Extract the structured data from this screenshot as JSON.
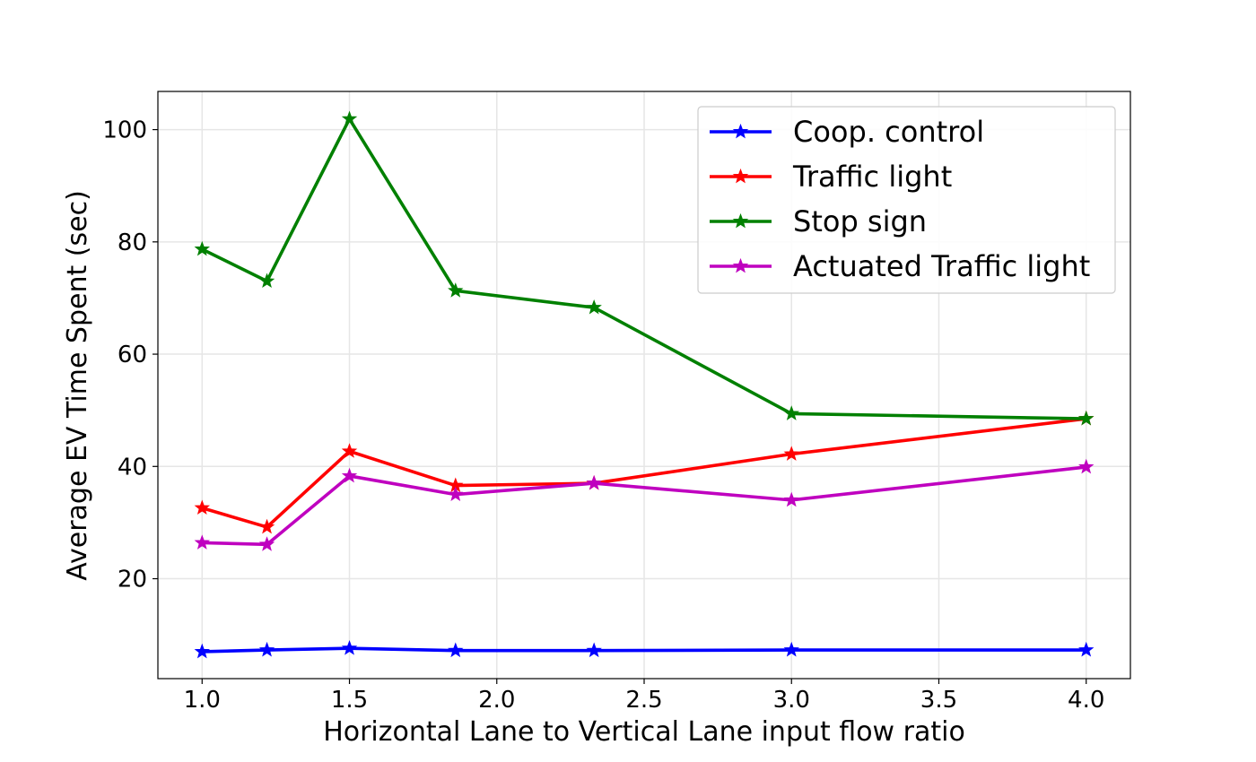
{
  "chart_data": {
    "type": "line",
    "title": "",
    "xlabel": "Horizontal Lane to Vertical Lane input flow ratio",
    "ylabel": "Average EV Time Spent (sec)",
    "xlim": [
      0.85,
      4.15
    ],
    "ylim": [
      2.2,
      106.8
    ],
    "xticks": [
      1.0,
      1.5,
      2.0,
      2.5,
      3.0,
      3.5,
      4.0
    ],
    "xtick_labels": [
      "1.0",
      "1.5",
      "2.0",
      "2.5",
      "3.0",
      "3.5",
      "4.0"
    ],
    "yticks": [
      20,
      40,
      60,
      80,
      100
    ],
    "ytick_labels": [
      "20",
      "40",
      "60",
      "80",
      "100"
    ],
    "grid": true,
    "legend_position": "top-right",
    "marker": "star",
    "x": [
      1.0,
      1.22,
      1.5,
      1.86,
      2.33,
      3.0,
      4.0
    ],
    "series": [
      {
        "name": "Coop. control",
        "color": "#0000ff",
        "values": [
          7.0,
          7.3,
          7.6,
          7.2,
          7.2,
          7.3,
          7.3
        ]
      },
      {
        "name": "Traffic light",
        "color": "#ff0000",
        "values": [
          32.6,
          29.2,
          42.7,
          36.6,
          37.0,
          42.2,
          48.5
        ]
      },
      {
        "name": "Stop sign",
        "color": "#008000",
        "values": [
          78.7,
          73.0,
          101.9,
          71.3,
          68.3,
          49.4,
          48.5
        ]
      },
      {
        "name": "Actuated Traffic light",
        "color": "#bf00bf",
        "values": [
          26.4,
          26.1,
          38.3,
          35.0,
          37.0,
          34.0,
          39.9
        ]
      }
    ]
  }
}
